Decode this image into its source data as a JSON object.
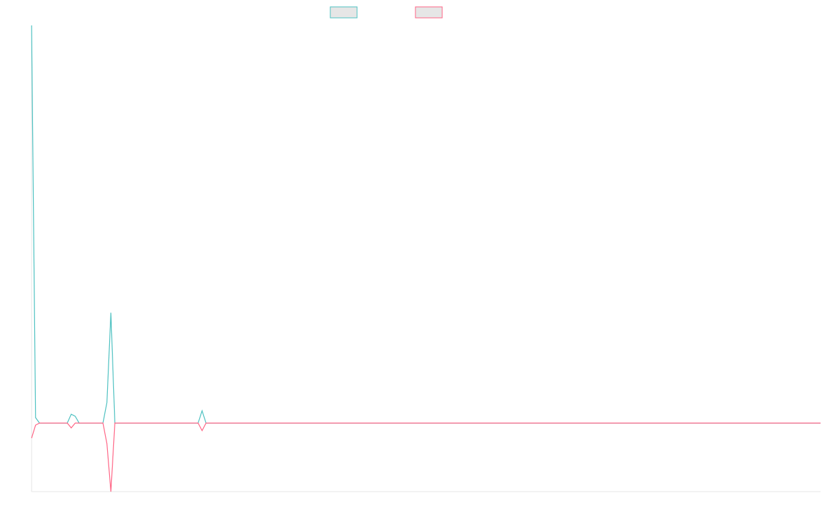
{
  "chart_data": {
    "type": "line",
    "series": [
      {
        "color": "#4bc0c0",
        "values": [
          5.8,
          0.08,
          0,
          0,
          0,
          0,
          0,
          0,
          0,
          0,
          0.13,
          0.1,
          0,
          0,
          0,
          0,
          0,
          0,
          0,
          0.3,
          1.61,
          0,
          0,
          0,
          0,
          0,
          0,
          0,
          0,
          0,
          0,
          0,
          0,
          0,
          0,
          0,
          0,
          0,
          0,
          0,
          0,
          0,
          0,
          0.18,
          0,
          0,
          0,
          0,
          0,
          0,
          0,
          0,
          0,
          0,
          0,
          0,
          0,
          0,
          0,
          0,
          0,
          0,
          0,
          0,
          0,
          0,
          0,
          0,
          0,
          0,
          0,
          0,
          0,
          0,
          0,
          0,
          0,
          0,
          0,
          0,
          0,
          0,
          0,
          0,
          0,
          0,
          0,
          0,
          0,
          0,
          0,
          0,
          0,
          0,
          0,
          0,
          0,
          0,
          0,
          0,
          0,
          0,
          0,
          0,
          0,
          0,
          0,
          0,
          0,
          0,
          0,
          0,
          0,
          0,
          0,
          0,
          0,
          0,
          0,
          0,
          0,
          0,
          0,
          0,
          0,
          0,
          0,
          0,
          0,
          0,
          0,
          0,
          0,
          0,
          0,
          0,
          0,
          0,
          0,
          0,
          0,
          0,
          0,
          0,
          0,
          0,
          0,
          0,
          0,
          0,
          0,
          0,
          0,
          0,
          0,
          0,
          0,
          0,
          0,
          0,
          0,
          0,
          0,
          0,
          0,
          0,
          0,
          0,
          0,
          0,
          0,
          0,
          0,
          0,
          0,
          0,
          0,
          0,
          0,
          0,
          0,
          0,
          0,
          0,
          0,
          0,
          0,
          0,
          0,
          0,
          0,
          0,
          0,
          0,
          0,
          0,
          0,
          0,
          0,
          0
        ]
      },
      {
        "color": "#ff6384",
        "values": [
          -0.22,
          -0.03,
          0,
          0,
          0,
          0,
          0,
          0,
          0,
          0,
          -0.07,
          0,
          0,
          0,
          0,
          0,
          0,
          0,
          0,
          -0.3,
          -1,
          0,
          0,
          0,
          0,
          0,
          0,
          0,
          0,
          0,
          0,
          0,
          0,
          0,
          0,
          0,
          0,
          0,
          0,
          0,
          0,
          0,
          0,
          -0.11,
          0,
          0,
          0,
          0,
          0,
          0,
          0,
          0,
          0,
          0,
          0,
          0,
          0,
          0,
          0,
          0,
          0,
          0,
          0,
          0,
          0,
          0,
          0,
          0,
          0,
          0,
          0,
          0,
          0,
          0,
          0,
          0,
          0,
          0,
          0,
          0,
          0,
          0,
          0,
          0,
          0,
          0,
          0,
          0,
          0,
          0,
          0,
          0,
          0,
          0,
          0,
          0,
          0,
          0,
          0,
          0,
          0,
          0,
          0,
          0,
          0,
          0,
          0,
          0,
          0,
          0,
          0,
          0,
          0,
          0,
          0,
          0,
          0,
          0,
          0,
          0,
          0,
          0,
          0,
          0,
          0,
          0,
          0,
          0,
          0,
          0,
          0,
          0,
          0,
          0,
          0,
          0,
          0,
          0,
          0,
          0,
          0,
          0,
          0,
          0,
          0,
          0,
          0,
          0,
          0,
          0,
          0,
          0,
          0,
          0,
          0,
          0,
          0,
          0,
          0,
          0,
          0,
          0,
          0,
          0,
          0,
          0,
          0,
          0,
          0,
          0,
          0,
          0,
          0,
          0,
          0,
          0,
          0,
          0,
          0,
          0,
          0,
          0,
          0,
          0,
          0,
          0,
          0,
          0,
          0,
          0,
          0,
          0,
          0,
          0,
          0,
          0,
          0,
          0,
          0,
          0
        ]
      }
    ],
    "ylim": [
      -1,
      5.8
    ]
  }
}
